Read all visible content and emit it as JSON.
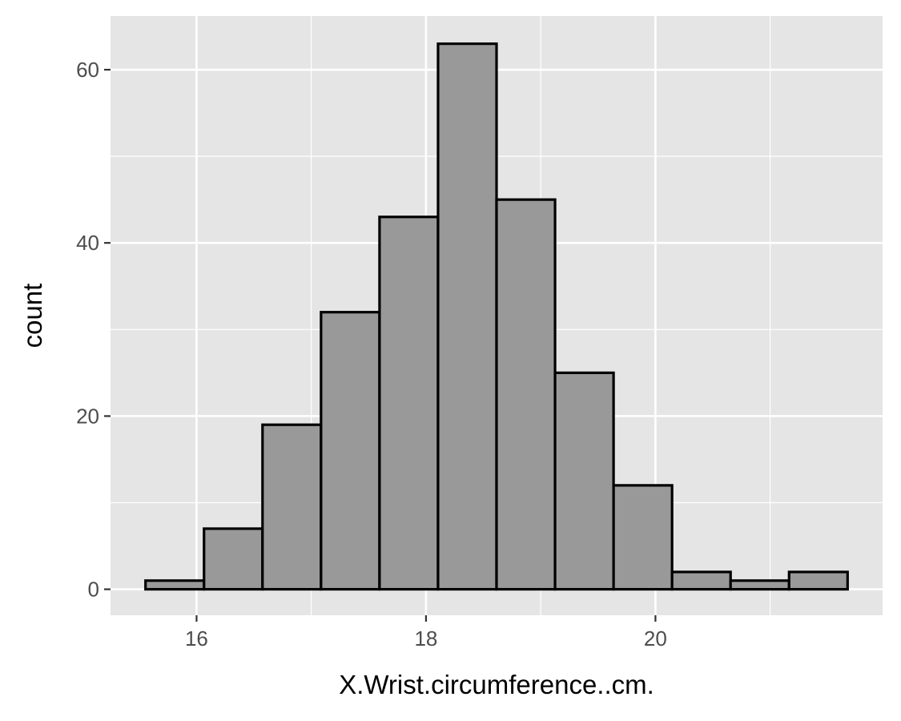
{
  "chart_data": {
    "type": "bar",
    "subtype": "histogram",
    "xlabel": "X.Wrist.circumference..cm.",
    "ylabel": "count",
    "bins": [
      {
        "x0": 15.555,
        "x1": 16.065,
        "count": 1
      },
      {
        "x0": 16.065,
        "x1": 16.575,
        "count": 7
      },
      {
        "x0": 16.575,
        "x1": 17.085,
        "count": 19
      },
      {
        "x0": 17.085,
        "x1": 17.595,
        "count": 32
      },
      {
        "x0": 17.595,
        "x1": 18.105,
        "count": 43
      },
      {
        "x0": 18.105,
        "x1": 18.615,
        "count": 63
      },
      {
        "x0": 18.615,
        "x1": 19.125,
        "count": 45
      },
      {
        "x0": 19.125,
        "x1": 19.635,
        "count": 25
      },
      {
        "x0": 19.635,
        "x1": 20.145,
        "count": 12
      },
      {
        "x0": 20.145,
        "x1": 20.655,
        "count": 2
      },
      {
        "x0": 20.655,
        "x1": 21.165,
        "count": 1
      },
      {
        "x0": 21.165,
        "x1": 21.675,
        "count": 2
      }
    ],
    "xlim": [
      15.25,
      21.98
    ],
    "ylim": [
      -3.0,
      66.2
    ],
    "x_ticks": [
      16,
      18,
      20
    ],
    "x_tick_labels": [
      "16",
      "18",
      "20"
    ],
    "x_minor_ticks": [
      17,
      19,
      21
    ],
    "y_ticks": [
      0,
      20,
      40,
      60
    ],
    "y_tick_labels": [
      "0",
      "20",
      "40",
      "60"
    ],
    "y_minor_ticks": [
      10,
      30,
      50
    ],
    "grid": true,
    "legend": "none",
    "colors": {
      "panel_background": "#e5e5e5",
      "grid": "#ffffff",
      "bar_fill": "#999999",
      "bar_outline": "#000000",
      "tick_label": "#4d4d4d",
      "axis_title": "#000000"
    }
  }
}
